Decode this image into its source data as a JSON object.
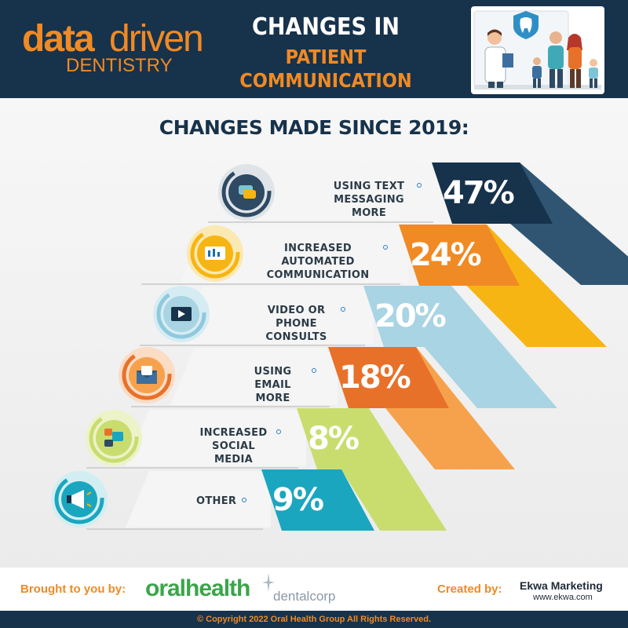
{
  "header": {
    "logo_data": "data",
    "logo_driven": "driven",
    "logo_sub": "DENTISTRY",
    "title_line1": "CHANGES IN",
    "title_line2": "PATIENT",
    "title_line3": "COMMUNICATION",
    "illustration": "dentist-family-illustration"
  },
  "colors": {
    "navy": "#17324b",
    "orange": "#f08a24",
    "slate": "#2f5573",
    "amber": "#f7b513",
    "lightblue": "#a9d4e3",
    "deeporange": "#e8712a",
    "peach": "#f6a24d",
    "lime": "#c9dd6f",
    "teal": "#1ba6bf"
  },
  "chart_data": {
    "type": "bar",
    "title": "CHANGES MADE SINCE 2019:",
    "categories": [
      "USING TEXT MESSAGING MORE",
      "INCREASED AUTOMATED COMMUNICATION",
      "VIDEO OR PHONE CONSULTS",
      "USING EMAIL MORE",
      "INCREASED SOCIAL MEDIA",
      "OTHER"
    ],
    "values": [
      47,
      24,
      20,
      18,
      8,
      9
    ],
    "unit": "%",
    "labels": [
      "47%",
      "24%",
      "20%",
      "18%",
      "8%",
      "9%"
    ],
    "label_lines": [
      [
        "USING TEXT",
        "MESSAGING MORE"
      ],
      [
        "INCREASED AUTOMATED",
        "COMMUNICATION"
      ],
      [
        "VIDEO OR",
        "PHONE CONSULTS"
      ],
      [
        "USING",
        "EMAIL MORE"
      ],
      [
        "INCREASED",
        "SOCIAL MEDIA"
      ],
      [
        "OTHER"
      ]
    ],
    "icons": [
      "chat-bubbles-icon",
      "monitor-chart-icon",
      "video-play-icon",
      "email-envelope-icon",
      "social-media-icon",
      "megaphone-icon"
    ],
    "xlabel": "",
    "ylabel": ""
  },
  "footer": {
    "brought_by": "Brought to you by:",
    "sponsor1": "oralhealth",
    "sponsor2": "dentalcorp",
    "created_by": "Created by:",
    "creator": "Ekwa Marketing",
    "creator_url": "www.ekwa.com",
    "copyright": "© Copyright 2022 Oral Health Group All Rights Reserved."
  }
}
